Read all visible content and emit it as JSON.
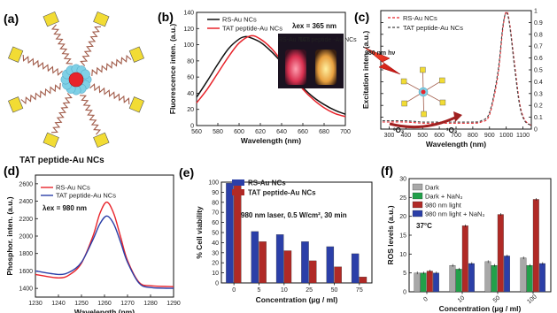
{
  "panel_labels": [
    "(a)",
    "(b)",
    "(c)",
    "(d)",
    "(e)",
    "(f)"
  ],
  "panel_a": {
    "caption": "TAT peptide-Au NCs"
  },
  "colors": {
    "red": "#e8242b",
    "black": "#111111",
    "blue": "#2b3fa8",
    "darkred": "#b02a26",
    "green": "#22a04a",
    "gray": "#a8a8a8",
    "yellow": "#f2dc34",
    "cyan": "#7fd0e6",
    "spring": "#a05a48"
  },
  "chart_data": [
    {
      "id": "b",
      "type": "line",
      "xlabel": "Wavelength (nm)",
      "ylabel": "Fluorescence inten. (a.u.)",
      "xlim": [
        560,
        700
      ],
      "ylim": [
        0,
        140
      ],
      "xticks": [
        560,
        580,
        600,
        620,
        640,
        660,
        680,
        700
      ],
      "yticks": [
        0,
        20,
        40,
        60,
        80,
        100,
        120,
        140
      ],
      "annotation": "λex = 365 nm",
      "inset_labels": [
        "RS-Au NCs",
        "TAT peptide -Au NCs"
      ],
      "series": [
        {
          "name": "RS-Au NCs",
          "color": "#111111",
          "peak_x": 606,
          "peak_y": 110,
          "left_width": 33,
          "right_width": 44,
          "x": [
            560,
            570,
            580,
            590,
            600,
            606,
            610,
            620,
            630,
            640,
            650,
            660,
            670,
            680,
            690,
            700
          ],
          "y": [
            35,
            55,
            76,
            95,
            107,
            110,
            109,
            103,
            92,
            78,
            62,
            47,
            35,
            26,
            19,
            14
          ]
        },
        {
          "name": "TAT peptide-Au NCs",
          "color": "#e8242b",
          "peak_x": 611,
          "peak_y": 111,
          "left_width": 31,
          "right_width": 40,
          "x": [
            560,
            570,
            580,
            590,
            600,
            611,
            620,
            630,
            640,
            650,
            660,
            670,
            680,
            690,
            700
          ],
          "y": [
            28,
            45,
            65,
            85,
            102,
            111,
            107,
            96,
            80,
            62,
            45,
            32,
            22,
            15,
            11
          ]
        }
      ]
    },
    {
      "id": "c",
      "type": "line",
      "xlabel": "Wavelength (nm)",
      "ylabel": "Excitation inten. (a.u.)",
      "xlim": [
        250,
        1150
      ],
      "ylim": [
        0,
        1.0
      ],
      "xticks": [
        300,
        400,
        500,
        600,
        700,
        800,
        900,
        1000,
        1100
      ],
      "yticks": [
        0.0,
        0.1,
        0.2,
        0.3,
        0.4,
        0.5,
        0.6,
        0.7,
        0.8,
        0.9,
        1.0
      ],
      "annotation": "980 nm hν",
      "labels_singlet": [
        "³O₂",
        "¹O₂"
      ],
      "series": [
        {
          "name": "RS-Au NCs",
          "color": "#e8242b",
          "dash": true,
          "x": [
            260,
            300,
            400,
            500,
            600,
            700,
            800,
            850,
            900,
            950,
            980,
            1000,
            1020,
            1050,
            1080,
            1110,
            1150
          ],
          "y": [
            0.06,
            0.06,
            0.06,
            0.05,
            0.05,
            0.05,
            0.05,
            0.06,
            0.12,
            0.45,
            0.85,
            0.99,
            0.9,
            0.55,
            0.22,
            0.08,
            0.03
          ]
        },
        {
          "name": "TAT peptide-Au NCs",
          "color": "#444444",
          "dash": true,
          "x": [
            260,
            300,
            400,
            500,
            600,
            700,
            800,
            850,
            900,
            950,
            980,
            1000,
            1020,
            1050,
            1080,
            1110,
            1150
          ],
          "y": [
            0.07,
            0.07,
            0.07,
            0.06,
            0.06,
            0.06,
            0.06,
            0.07,
            0.14,
            0.48,
            0.87,
            0.98,
            0.88,
            0.52,
            0.2,
            0.07,
            0.03
          ]
        }
      ]
    },
    {
      "id": "d",
      "type": "line",
      "xlabel": "Wavelength (nm)",
      "ylabel": "Phosphor. inten. (a.u.)",
      "xlim": [
        1230,
        1290
      ],
      "ylim": [
        1300,
        2700
      ],
      "xticks": [
        1230,
        1240,
        1250,
        1260,
        1270,
        1280,
        1290
      ],
      "yticks": [
        1400,
        1600,
        1800,
        2000,
        2200,
        2400,
        2600
      ],
      "annotation": "λex = 980 nm",
      "series": [
        {
          "name": "RS-Au NCs",
          "color": "#e8242b",
          "base": 1500,
          "peak": 2390,
          "peak_x": 1261,
          "x": [
            1230,
            1240,
            1245,
            1250,
            1255,
            1258,
            1261,
            1264,
            1267,
            1270,
            1275,
            1280,
            1290
          ],
          "y": [
            1560,
            1520,
            1560,
            1690,
            2000,
            2260,
            2390,
            2260,
            1990,
            1720,
            1470,
            1430,
            1420
          ]
        },
        {
          "name": "TAT peptide-Au NCs",
          "color": "#2b3fa8",
          "base": 1480,
          "peak": 2230,
          "peak_x": 1261,
          "x": [
            1230,
            1240,
            1245,
            1250,
            1255,
            1258,
            1261,
            1264,
            1267,
            1270,
            1275,
            1280,
            1290
          ],
          "y": [
            1600,
            1560,
            1590,
            1700,
            1960,
            2140,
            2230,
            2140,
            1930,
            1700,
            1460,
            1410,
            1400
          ]
        }
      ]
    },
    {
      "id": "e",
      "type": "bar",
      "xlabel": "Concentration (µg / ml)",
      "ylabel": "% Cell viability",
      "ylim": [
        0,
        100
      ],
      "yticks": [
        0,
        10,
        20,
        30,
        40,
        50,
        60,
        70,
        80,
        90,
        100
      ],
      "categories": [
        "0",
        "5",
        "10",
        "25",
        "50",
        "75"
      ],
      "annotation": "980 nm laser, 0.5 W/cm², 30 min",
      "series": [
        {
          "name": "RS-Au NCs",
          "color": "#2b3fa8",
          "values": [
            99,
            51,
            48,
            41,
            36,
            29
          ]
        },
        {
          "name": "TAT peptide-Au NCs",
          "color": "#b02a26",
          "values": [
            99,
            41,
            32,
            22,
            16,
            6
          ]
        }
      ]
    },
    {
      "id": "f",
      "type": "bar",
      "xlabel": "Concentration (µg / ml)",
      "ylabel": "ROS levels (a.u.)",
      "ylim": [
        0,
        30
      ],
      "yticks": [
        0,
        5,
        10,
        15,
        20,
        25,
        30
      ],
      "categories": [
        "0",
        "10",
        "50",
        "100"
      ],
      "annotation": "37°C",
      "series": [
        {
          "name": "Dark",
          "color": "#a8a8a8",
          "values": [
            5,
            7,
            8,
            9
          ]
        },
        {
          "name": "Dark + NaN₃",
          "color": "#22a04a",
          "values": [
            5,
            6,
            7,
            7
          ]
        },
        {
          "name": "980 nm light",
          "color": "#b02a26",
          "values": [
            5.5,
            17.5,
            20.5,
            24.5
          ]
        },
        {
          "name": "980 nm light + NaN₃",
          "color": "#2b3fa8",
          "values": [
            5,
            7.5,
            9.5,
            7.5
          ]
        }
      ]
    }
  ]
}
